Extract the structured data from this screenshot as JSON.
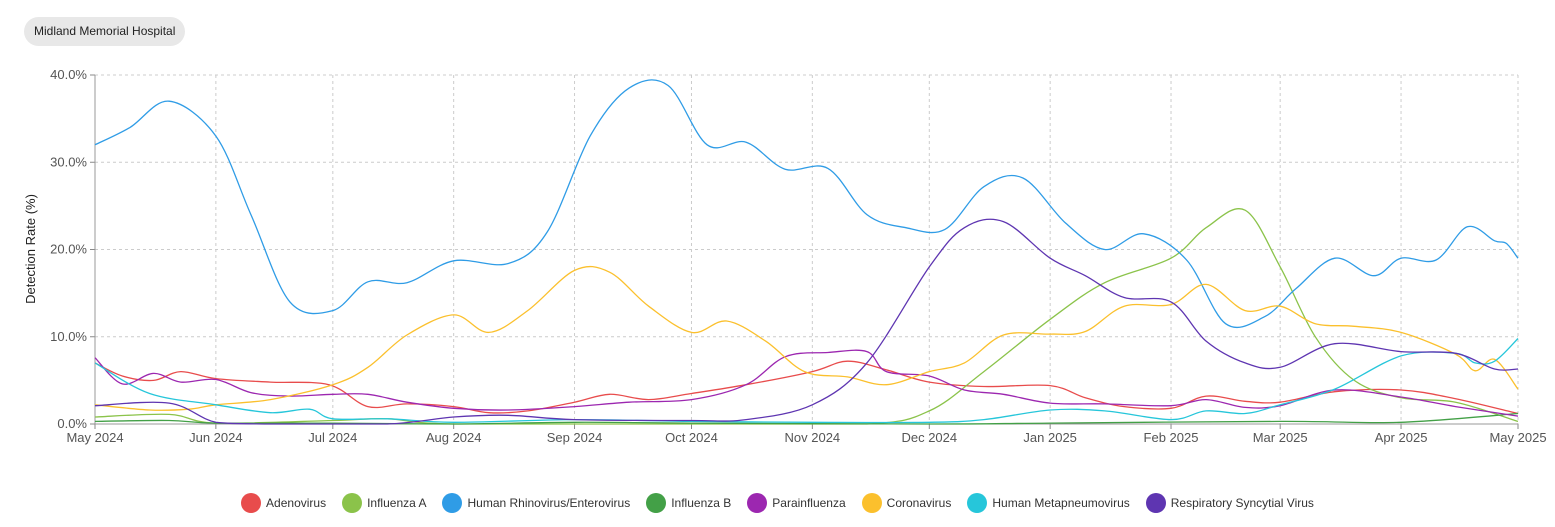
{
  "facility": "Midland Memorial Hospital",
  "chart_data": {
    "type": "line",
    "title": "",
    "xlabel": "",
    "ylabel": "Detection Rate (%)",
    "x_ticks": [
      "May 2024",
      "Jun 2024",
      "Jul 2024",
      "Aug 2024",
      "Sep 2024",
      "Oct 2024",
      "Nov 2024",
      "Dec 2024",
      "Jan 2025",
      "Feb 2025",
      "Mar 2025",
      "Apr 2025",
      "May 2025"
    ],
    "y_ticks": [
      "0.0%",
      "10.0%",
      "20.0%",
      "30.0%",
      "40.0%"
    ],
    "xlim": [
      "2024-05-01",
      "2025-05-01"
    ],
    "ylim": [
      0,
      40
    ],
    "grid": true,
    "legend_position": "bottom",
    "series": [
      {
        "name": "Adenovirus",
        "color": "#e84c4c",
        "points": [
          [
            "2024-05-01",
            7
          ],
          [
            "2024-05-08",
            5.5
          ],
          [
            "2024-05-16",
            5
          ],
          [
            "2024-05-23",
            6
          ],
          [
            "2024-06-01",
            5.2
          ],
          [
            "2024-06-15",
            4.8
          ],
          [
            "2024-06-30",
            4.5
          ],
          [
            "2024-07-10",
            2
          ],
          [
            "2024-07-20",
            2.3
          ],
          [
            "2024-08-01",
            2
          ],
          [
            "2024-08-10",
            1.3
          ],
          [
            "2024-08-20",
            1.5
          ],
          [
            "2024-09-01",
            2.5
          ],
          [
            "2024-09-10",
            3.4
          ],
          [
            "2024-09-20",
            2.8
          ],
          [
            "2024-10-01",
            3.5
          ],
          [
            "2024-10-15",
            4.5
          ],
          [
            "2024-11-01",
            6
          ],
          [
            "2024-11-10",
            7.2
          ],
          [
            "2024-11-20",
            6.2
          ],
          [
            "2024-12-01",
            4.8
          ],
          [
            "2024-12-15",
            4.3
          ],
          [
            "2025-01-01",
            4.4
          ],
          [
            "2025-01-10",
            3
          ],
          [
            "2025-01-20",
            2
          ],
          [
            "2025-02-01",
            1.8
          ],
          [
            "2025-02-10",
            3.2
          ],
          [
            "2025-02-20",
            2.6
          ],
          [
            "2025-03-01",
            2.5
          ],
          [
            "2025-03-15",
            3.7
          ],
          [
            "2025-04-01",
            3.9
          ],
          [
            "2025-04-15",
            2.9
          ],
          [
            "2025-05-01",
            1.2
          ]
        ]
      },
      {
        "name": "Influenza A",
        "color": "#8bc34a",
        "points": [
          [
            "2024-05-01",
            0.8
          ],
          [
            "2024-05-20",
            1.1
          ],
          [
            "2024-06-01",
            0.1
          ],
          [
            "2024-07-01",
            0.4
          ],
          [
            "2024-07-15",
            0.6
          ],
          [
            "2024-08-01",
            0
          ],
          [
            "2024-10-01",
            0
          ],
          [
            "2024-11-15",
            0
          ],
          [
            "2024-12-01",
            1.5
          ],
          [
            "2024-12-15",
            6
          ],
          [
            "2025-01-01",
            12
          ],
          [
            "2025-01-15",
            16.2
          ],
          [
            "2025-02-01",
            19
          ],
          [
            "2025-02-10",
            22.5
          ],
          [
            "2025-02-20",
            24.5
          ],
          [
            "2025-03-01",
            18
          ],
          [
            "2025-03-10",
            10
          ],
          [
            "2025-03-20",
            5
          ],
          [
            "2025-04-01",
            3
          ],
          [
            "2025-04-15",
            2.5
          ],
          [
            "2025-05-01",
            0.3
          ]
        ]
      },
      {
        "name": "Human Rhinovirus/Enterovirus",
        "color": "#2f9ce6",
        "points": [
          [
            "2024-05-01",
            32
          ],
          [
            "2024-05-10",
            34
          ],
          [
            "2024-05-20",
            37
          ],
          [
            "2024-06-01",
            33
          ],
          [
            "2024-06-10",
            24
          ],
          [
            "2024-06-20",
            14
          ],
          [
            "2024-07-01",
            13
          ],
          [
            "2024-07-10",
            16.3
          ],
          [
            "2024-07-20",
            16.2
          ],
          [
            "2024-08-01",
            18.7
          ],
          [
            "2024-08-15",
            18.4
          ],
          [
            "2024-08-25",
            22
          ],
          [
            "2024-09-05",
            33
          ],
          [
            "2024-09-15",
            38.5
          ],
          [
            "2024-09-25",
            38.8
          ],
          [
            "2024-10-05",
            32
          ],
          [
            "2024-10-15",
            32.3
          ],
          [
            "2024-10-25",
            29.2
          ],
          [
            "2024-11-05",
            29.3
          ],
          [
            "2024-11-15",
            24
          ],
          [
            "2024-11-25",
            22.5
          ],
          [
            "2024-12-05",
            22.3
          ],
          [
            "2024-12-15",
            27.2
          ],
          [
            "2024-12-25",
            28.2
          ],
          [
            "2025-01-05",
            23
          ],
          [
            "2025-01-15",
            20
          ],
          [
            "2025-01-25",
            21.8
          ],
          [
            "2025-02-05",
            18.8
          ],
          [
            "2025-02-15",
            11.5
          ],
          [
            "2025-02-25",
            12.3
          ],
          [
            "2025-03-05",
            15.5
          ],
          [
            "2025-03-15",
            19
          ],
          [
            "2025-03-25",
            17
          ],
          [
            "2025-04-01",
            19
          ],
          [
            "2025-04-10",
            18.8
          ],
          [
            "2025-04-18",
            22.6
          ],
          [
            "2025-04-25",
            21
          ],
          [
            "2025-04-28",
            20.7
          ],
          [
            "2025-05-01",
            19
          ]
        ]
      },
      {
        "name": "Influenza B",
        "color": "#43a047",
        "points": [
          [
            "2024-05-01",
            0.3
          ],
          [
            "2024-05-20",
            0.4
          ],
          [
            "2024-06-01",
            0.1
          ],
          [
            "2024-07-01",
            0.1
          ],
          [
            "2024-08-01",
            0
          ],
          [
            "2024-09-01",
            0.2
          ],
          [
            "2024-10-01",
            0.1
          ],
          [
            "2024-12-01",
            0
          ],
          [
            "2025-01-01",
            0.1
          ],
          [
            "2025-03-01",
            0.3
          ],
          [
            "2025-04-01",
            0.2
          ],
          [
            "2025-05-01",
            1.2
          ]
        ]
      },
      {
        "name": "Parainfluenza",
        "color": "#9c27b0",
        "points": [
          [
            "2024-05-01",
            7.6
          ],
          [
            "2024-05-08",
            4.6
          ],
          [
            "2024-05-16",
            5.8
          ],
          [
            "2024-05-23",
            4.8
          ],
          [
            "2024-06-01",
            5.1
          ],
          [
            "2024-06-10",
            3.6
          ],
          [
            "2024-06-20",
            3.2
          ],
          [
            "2024-07-01",
            3.4
          ],
          [
            "2024-07-10",
            3.4
          ],
          [
            "2024-07-20",
            2.5
          ],
          [
            "2024-08-01",
            1.8
          ],
          [
            "2024-08-15",
            1.6
          ],
          [
            "2024-09-01",
            2
          ],
          [
            "2024-09-15",
            2.5
          ],
          [
            "2024-10-01",
            2.8
          ],
          [
            "2024-10-15",
            4.5
          ],
          [
            "2024-10-25",
            7.7
          ],
          [
            "2024-11-05",
            8.2
          ],
          [
            "2024-11-15",
            8.3
          ],
          [
            "2024-11-20",
            6
          ],
          [
            "2024-12-01",
            5.5
          ],
          [
            "2024-12-10",
            3.9
          ],
          [
            "2024-12-20",
            3.4
          ],
          [
            "2025-01-01",
            2.4
          ],
          [
            "2025-01-15",
            2.3
          ],
          [
            "2025-02-01",
            2.1
          ],
          [
            "2025-02-10",
            2.8
          ],
          [
            "2025-02-20",
            1.9
          ],
          [
            "2025-03-01",
            2.1
          ],
          [
            "2025-03-15",
            3.9
          ],
          [
            "2025-04-01",
            3.1
          ],
          [
            "2025-04-15",
            2
          ],
          [
            "2025-05-01",
            0.9
          ]
        ]
      },
      {
        "name": "Coronavirus",
        "color": "#fbc02d",
        "points": [
          [
            "2024-05-01",
            2.2
          ],
          [
            "2024-05-15",
            1.6
          ],
          [
            "2024-05-25",
            1.7
          ],
          [
            "2024-06-01",
            2.2
          ],
          [
            "2024-06-15",
            2.8
          ],
          [
            "2024-07-01",
            4.5
          ],
          [
            "2024-07-10",
            6.5
          ],
          [
            "2024-07-20",
            10.2
          ],
          [
            "2024-08-01",
            12.5
          ],
          [
            "2024-08-10",
            10.5
          ],
          [
            "2024-08-20",
            13
          ],
          [
            "2024-09-01",
            17.6
          ],
          [
            "2024-09-10",
            17.4
          ],
          [
            "2024-09-20",
            13.5
          ],
          [
            "2024-10-01",
            10.5
          ],
          [
            "2024-10-10",
            11.8
          ],
          [
            "2024-10-20",
            9.5
          ],
          [
            "2024-10-30",
            6
          ],
          [
            "2024-11-10",
            5.4
          ],
          [
            "2024-11-20",
            4.5
          ],
          [
            "2024-12-01",
            6
          ],
          [
            "2024-12-10",
            7
          ],
          [
            "2024-12-20",
            10.2
          ],
          [
            "2025-01-01",
            10.3
          ],
          [
            "2025-01-10",
            10.6
          ],
          [
            "2025-01-20",
            13.5
          ],
          [
            "2025-02-01",
            13.7
          ],
          [
            "2025-02-10",
            16
          ],
          [
            "2025-02-20",
            13
          ],
          [
            "2025-03-01",
            13.5
          ],
          [
            "2025-03-10",
            11.5
          ],
          [
            "2025-03-20",
            11.2
          ],
          [
            "2025-04-01",
            10.5
          ],
          [
            "2025-04-15",
            8
          ],
          [
            "2025-04-20",
            6.1
          ],
          [
            "2025-04-25",
            7.4
          ],
          [
            "2025-05-01",
            4
          ]
        ]
      },
      {
        "name": "Human Metapneumovirus",
        "color": "#26c6da",
        "points": [
          [
            "2024-05-01",
            7
          ],
          [
            "2024-05-15",
            3.5
          ],
          [
            "2024-06-01",
            2.2
          ],
          [
            "2024-06-15",
            1.3
          ],
          [
            "2024-06-25",
            1.7
          ],
          [
            "2024-07-01",
            0.6
          ],
          [
            "2024-07-15",
            0.6
          ],
          [
            "2024-08-01",
            0.2
          ],
          [
            "2024-09-01",
            0.5
          ],
          [
            "2024-10-01",
            0.3
          ],
          [
            "2024-11-01",
            0.2
          ],
          [
            "2024-12-01",
            0.2
          ],
          [
            "2024-12-15",
            0.5
          ],
          [
            "2025-01-01",
            1.6
          ],
          [
            "2025-01-15",
            1.5
          ],
          [
            "2025-02-01",
            0.5
          ],
          [
            "2025-02-10",
            1.5
          ],
          [
            "2025-02-20",
            1.2
          ],
          [
            "2025-03-01",
            2.2
          ],
          [
            "2025-03-15",
            4
          ],
          [
            "2025-04-01",
            7.8
          ],
          [
            "2025-04-15",
            8.1
          ],
          [
            "2025-04-20",
            7
          ],
          [
            "2025-04-25",
            7.2
          ],
          [
            "2025-05-01",
            9.8
          ]
        ]
      },
      {
        "name": "Respiratory Syncytial Virus",
        "color": "#5e35b1",
        "points": [
          [
            "2024-05-01",
            2.1
          ],
          [
            "2024-05-20",
            2.4
          ],
          [
            "2024-06-01",
            0.2
          ],
          [
            "2024-06-15",
            0
          ],
          [
            "2024-07-15",
            0
          ],
          [
            "2024-08-01",
            0.8
          ],
          [
            "2024-08-15",
            1
          ],
          [
            "2024-09-01",
            0.5
          ],
          [
            "2024-10-01",
            0.4
          ],
          [
            "2024-10-15",
            0.5
          ],
          [
            "2024-11-01",
            2.2
          ],
          [
            "2024-11-15",
            7
          ],
          [
            "2024-12-01",
            18
          ],
          [
            "2024-12-10",
            22.5
          ],
          [
            "2024-12-20",
            23.2
          ],
          [
            "2025-01-01",
            19
          ],
          [
            "2025-01-10",
            17
          ],
          [
            "2025-01-20",
            14.5
          ],
          [
            "2025-02-01",
            14
          ],
          [
            "2025-02-10",
            9.5
          ],
          [
            "2025-02-20",
            7
          ],
          [
            "2025-03-01",
            6.5
          ],
          [
            "2025-03-15",
            9.2
          ],
          [
            "2025-04-01",
            8.3
          ],
          [
            "2025-04-15",
            8.1
          ],
          [
            "2025-04-25",
            6.3
          ],
          [
            "2025-05-01",
            6.3
          ]
        ]
      }
    ]
  }
}
